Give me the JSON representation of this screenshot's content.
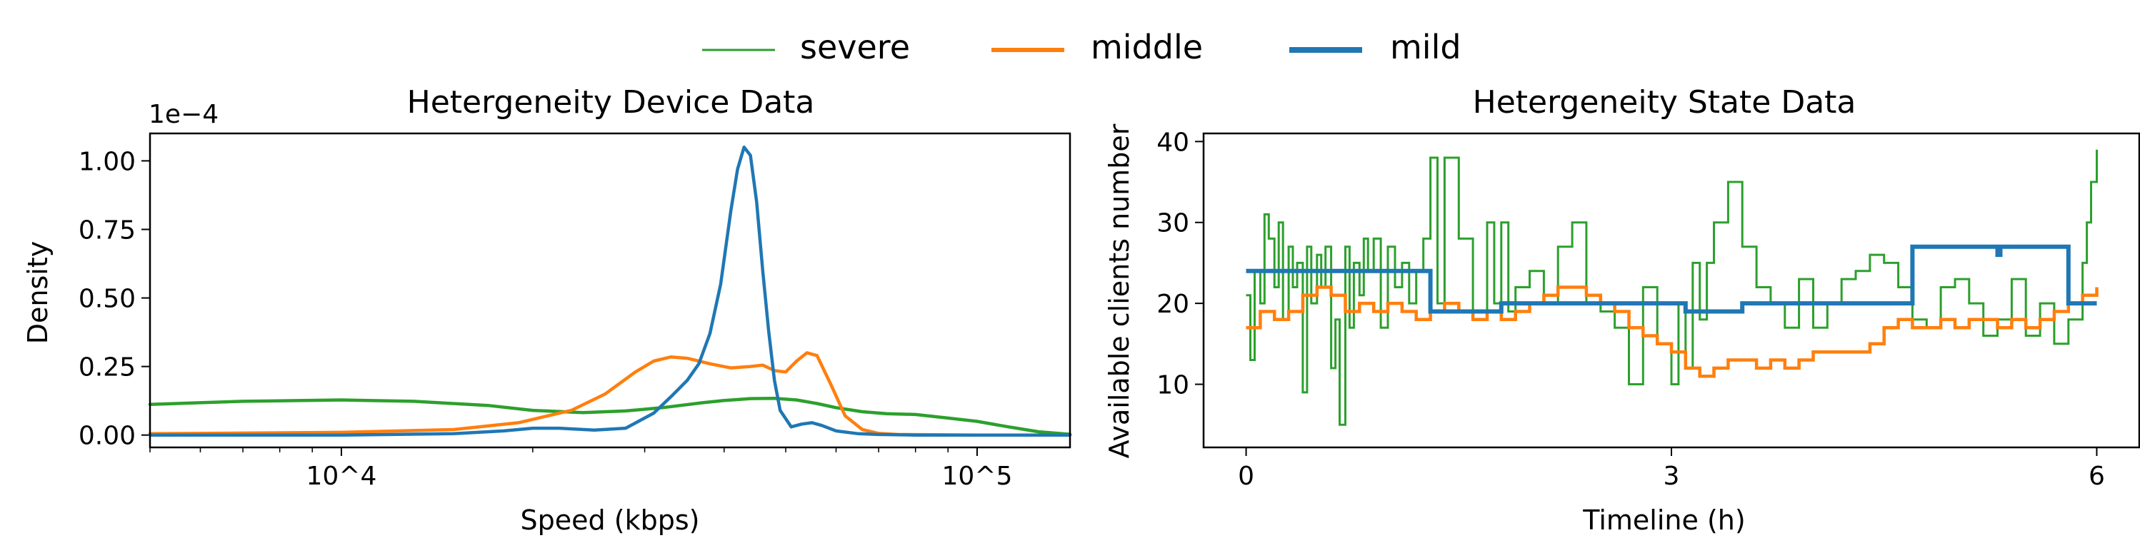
{
  "legend": {
    "items": [
      {
        "label": "severe",
        "color": "#2ca02c"
      },
      {
        "label": "middle",
        "color": "#ff7f0e"
      },
      {
        "label": "mild",
        "color": "#1f77b4"
      }
    ]
  },
  "chart_data": [
    {
      "type": "line",
      "title": "Hetergeneity Device Data",
      "xlabel": "Speed (kbps)",
      "ylabel": "Density",
      "xscale": "log",
      "xlim": [
        5000,
        140000
      ],
      "ylim": [
        -0.045,
        1.1
      ],
      "offset_label": "1e−4",
      "xtick_labels": [
        "10^4",
        "10^5"
      ],
      "ytick_labels": [
        "0.00",
        "0.25",
        "0.50",
        "0.75",
        "1.00"
      ],
      "series": [
        {
          "name": "severe",
          "color": "#2ca02c",
          "x": [
            5000,
            7000,
            10000,
            13000,
            17000,
            20000,
            24000,
            28000,
            32000,
            37000,
            40000,
            44000,
            48000,
            52000,
            56000,
            60000,
            66000,
            72000,
            80000,
            90000,
            100000,
            112000,
            125000,
            140000
          ],
          "y": [
            0.112,
            0.123,
            0.128,
            0.123,
            0.108,
            0.09,
            0.082,
            0.088,
            0.1,
            0.118,
            0.126,
            0.133,
            0.134,
            0.128,
            0.115,
            0.1,
            0.085,
            0.078,
            0.075,
            0.062,
            0.05,
            0.03,
            0.012,
            0.003
          ]
        },
        {
          "name": "middle",
          "color": "#ff7f0e",
          "x": [
            5000,
            10000,
            15000,
            19000,
            23000,
            26000,
            29000,
            31000,
            33000,
            35000,
            38000,
            41000,
            44000,
            46000,
            48000,
            50000,
            52000,
            54000,
            56000,
            59000,
            62000,
            66000,
            70000,
            75000,
            85000,
            100000,
            140000
          ],
          "y": [
            0.005,
            0.01,
            0.02,
            0.045,
            0.09,
            0.15,
            0.23,
            0.27,
            0.285,
            0.28,
            0.26,
            0.245,
            0.25,
            0.255,
            0.235,
            0.23,
            0.27,
            0.3,
            0.29,
            0.18,
            0.07,
            0.02,
            0.006,
            0.002,
            0.001,
            0.0,
            0.0
          ]
        },
        {
          "name": "mild",
          "color": "#1f77b4",
          "x": [
            5000,
            10000,
            15000,
            18000,
            20000,
            22000,
            25000,
            28000,
            31000,
            33000,
            35000,
            36500,
            38000,
            39500,
            41000,
            42000,
            43000,
            44000,
            45000,
            46000,
            47000,
            48000,
            49000,
            51000,
            53000,
            55000,
            57000,
            60000,
            65000,
            70000,
            80000,
            100000,
            140000
          ],
          "y": [
            0.0,
            0.0,
            0.005,
            0.015,
            0.025,
            0.025,
            0.018,
            0.025,
            0.08,
            0.14,
            0.2,
            0.26,
            0.37,
            0.55,
            0.82,
            0.97,
            1.05,
            1.02,
            0.85,
            0.6,
            0.38,
            0.2,
            0.09,
            0.03,
            0.04,
            0.045,
            0.035,
            0.015,
            0.005,
            0.002,
            0.0,
            0.0,
            0.0
          ]
        }
      ]
    },
    {
      "type": "line",
      "title": "Hetergeneity State Data",
      "xlabel": "Timeline (h)",
      "ylabel": "Available clients number",
      "xlim": [
        -0.3,
        6.3
      ],
      "ylim": [
        2.2,
        41
      ],
      "xticks": [
        0,
        3,
        6
      ],
      "xtick_labels": [
        "0",
        "3",
        "6"
      ],
      "yticks": [
        10,
        20,
        30,
        40
      ],
      "ytick_labels": [
        "10",
        "20",
        "30",
        "40"
      ],
      "series": [
        {
          "name": "mild",
          "color": "#1f77b4",
          "step": true,
          "x": [
            0,
            1.3,
            1.3,
            1.8,
            1.8,
            3.1,
            3.1,
            3.5,
            3.5,
            4.7,
            4.7,
            5.3,
            5.3,
            5.32,
            5.32,
            5.8,
            5.8,
            6.0
          ],
          "y": [
            24,
            24,
            19,
            19,
            20,
            20,
            19,
            19,
            20,
            20,
            27,
            27,
            26,
            26,
            27,
            27,
            20,
            20
          ]
        },
        {
          "name": "middle",
          "color": "#ff7f0e",
          "step": true,
          "x": [
            0,
            0.05,
            0.1,
            0.2,
            0.3,
            0.4,
            0.5,
            0.6,
            0.7,
            0.8,
            0.9,
            1.0,
            1.1,
            1.2,
            1.3,
            1.4,
            1.5,
            1.6,
            1.7,
            1.8,
            1.9,
            2.0,
            2.1,
            2.2,
            2.3,
            2.4,
            2.5,
            2.6,
            2.7,
            2.8,
            2.9,
            3.0,
            3.1,
            3.2,
            3.3,
            3.4,
            3.5,
            3.6,
            3.7,
            3.8,
            3.9,
            4.0,
            4.1,
            4.2,
            4.3,
            4.4,
            4.5,
            4.6,
            4.7,
            4.8,
            4.9,
            5.0,
            5.1,
            5.2,
            5.3,
            5.4,
            5.5,
            5.6,
            5.7,
            5.8,
            5.9,
            6.0
          ],
          "y": [
            17,
            17,
            19,
            18,
            19,
            21,
            22,
            21,
            19,
            20,
            19,
            20,
            19,
            18,
            19,
            20,
            19,
            18,
            19,
            18,
            19,
            20,
            21,
            22,
            22,
            21,
            20,
            19,
            17,
            16,
            15,
            14,
            12,
            11,
            12,
            13,
            13,
            12,
            13,
            12,
            13,
            14,
            14,
            14,
            14,
            15,
            17,
            18,
            17,
            17,
            18,
            17,
            18,
            18,
            17,
            18,
            17,
            18,
            19,
            20,
            21,
            22
          ]
        },
        {
          "name": "severe",
          "color": "#2ca02c",
          "step": true,
          "x": [
            0,
            0.03,
            0.06,
            0.1,
            0.13,
            0.16,
            0.2,
            0.23,
            0.26,
            0.3,
            0.33,
            0.36,
            0.4,
            0.43,
            0.46,
            0.5,
            0.53,
            0.56,
            0.6,
            0.63,
            0.66,
            0.7,
            0.73,
            0.76,
            0.8,
            0.83,
            0.86,
            0.9,
            0.95,
            1.0,
            1.05,
            1.1,
            1.15,
            1.2,
            1.25,
            1.3,
            1.35,
            1.4,
            1.5,
            1.6,
            1.7,
            1.75,
            1.8,
            1.85,
            1.9,
            2.0,
            2.1,
            2.2,
            2.3,
            2.4,
            2.5,
            2.6,
            2.7,
            2.8,
            2.9,
            3.0,
            3.05,
            3.1,
            3.15,
            3.2,
            3.25,
            3.3,
            3.4,
            3.5,
            3.6,
            3.7,
            3.8,
            3.9,
            4.0,
            4.1,
            4.2,
            4.3,
            4.4,
            4.5,
            4.6,
            4.7,
            4.8,
            4.9,
            5.0,
            5.1,
            5.2,
            5.3,
            5.4,
            5.5,
            5.6,
            5.7,
            5.8,
            5.9,
            5.93,
            5.96,
            6.0
          ],
          "y": [
            21,
            13,
            24,
            20,
            31,
            28,
            22,
            30,
            18,
            27,
            22,
            25,
            9,
            27,
            20,
            26,
            22,
            27,
            12,
            18,
            5,
            27,
            17,
            25,
            21,
            28,
            24,
            28,
            17,
            27,
            22,
            25,
            20,
            24,
            28,
            38,
            20,
            38,
            28,
            18,
            30,
            20,
            30,
            19,
            22,
            24,
            20,
            27,
            30,
            20,
            19,
            17,
            10,
            22,
            15,
            10,
            20,
            12,
            25,
            18,
            25,
            30,
            35,
            27,
            22,
            20,
            17,
            23,
            17,
            20,
            23,
            24,
            26,
            25,
            22,
            18,
            17,
            22,
            23,
            20,
            16,
            18,
            23,
            16,
            20,
            15,
            18,
            25,
            30,
            35,
            39
          ]
        }
      ]
    }
  ]
}
